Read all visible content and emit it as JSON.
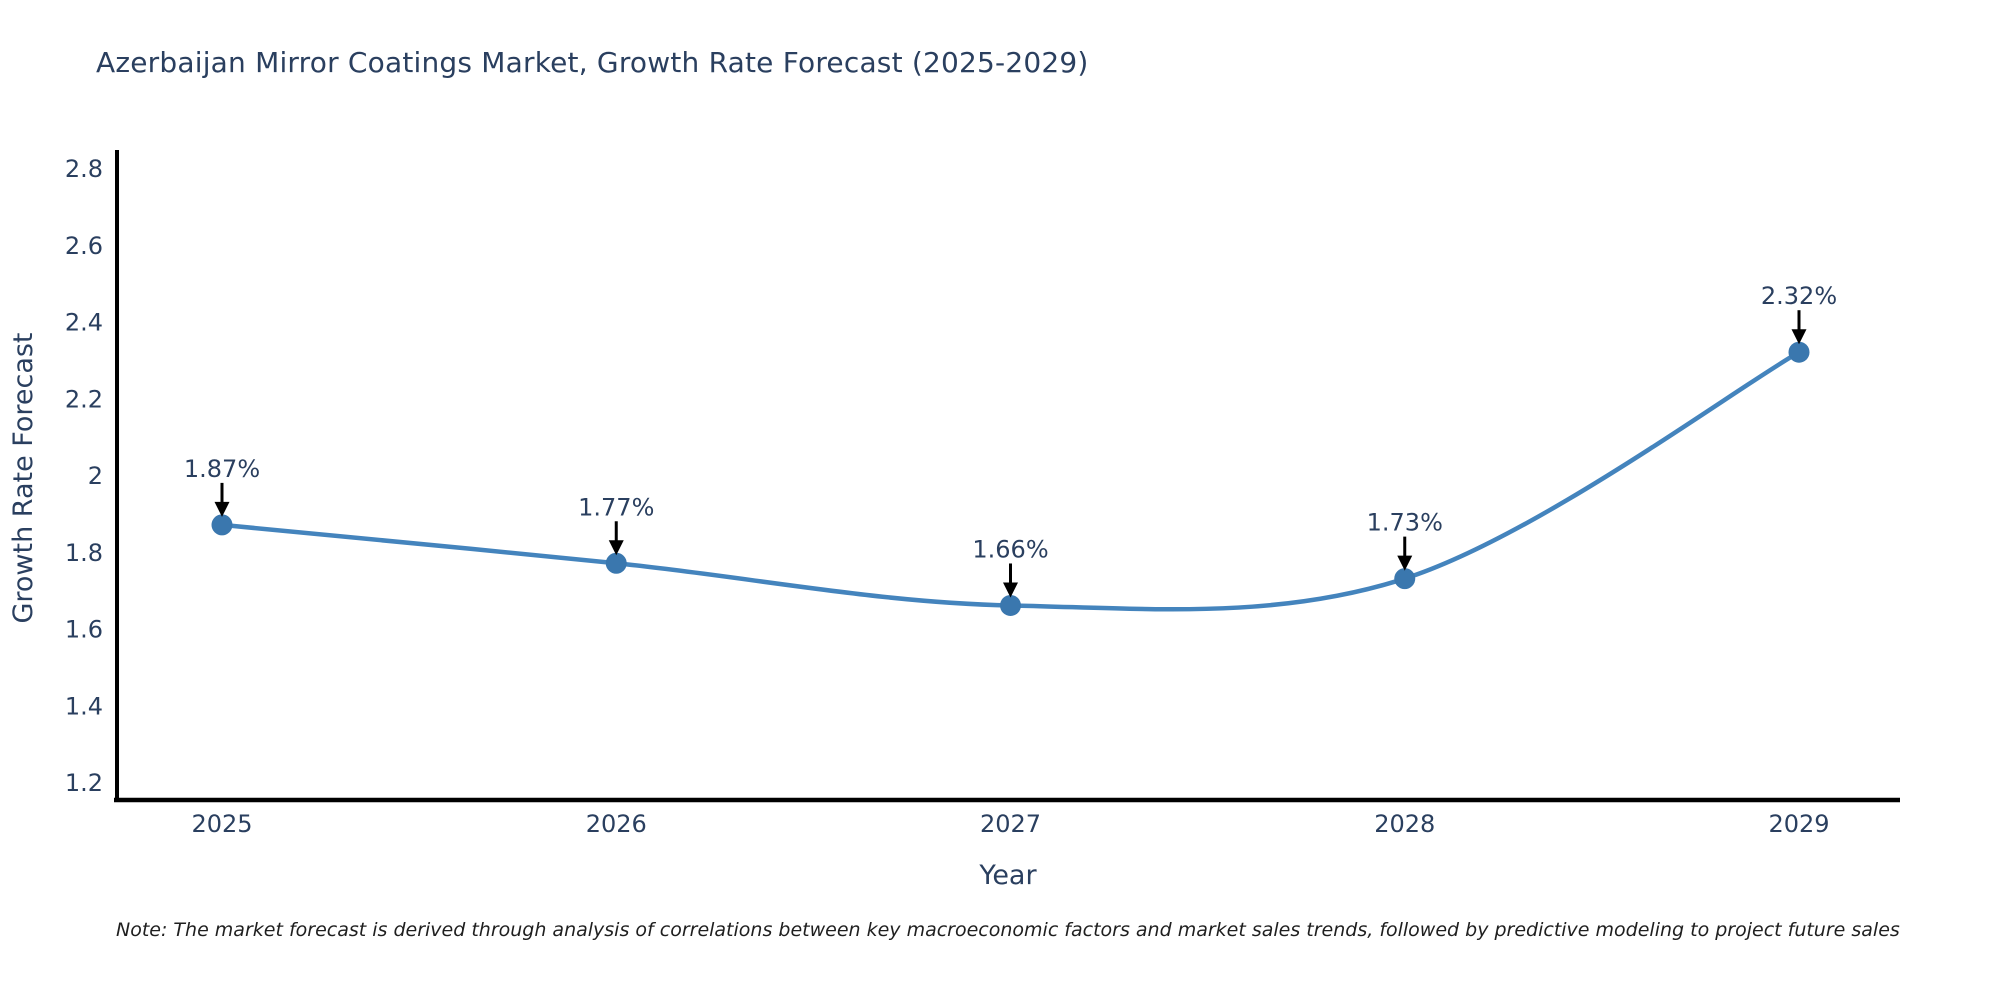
{
  "chart_data": {
    "type": "line",
    "title": "Azerbaijan Mirror Coatings Market, Growth Rate Forecast (2025-2029)",
    "xlabel": "Year",
    "ylabel": "Growth Rate Forecast",
    "categories": [
      "2025",
      "2026",
      "2027",
      "2028",
      "2029"
    ],
    "values": [
      1.87,
      1.77,
      1.66,
      1.73,
      2.32
    ],
    "point_labels": [
      "1.87%",
      "1.77%",
      "1.66%",
      "1.73%",
      "2.32%"
    ],
    "yticks": [
      2.8,
      2.6,
      2.4,
      2.2,
      2,
      1.8,
      1.6,
      1.4,
      1.2
    ],
    "ytick_labels": [
      "2.8",
      "2.6",
      "2.4",
      "2.2",
      "2",
      "1.8",
      "1.6",
      "1.4",
      "1.2"
    ],
    "ylim": [
      1.15,
      2.85
    ],
    "line_shape": "spline",
    "grid": false,
    "legend_position": "none",
    "colors": {
      "line": "#4484bd",
      "marker": "#3a77ae",
      "axis": "#000000",
      "text": "#2a3f5f",
      "annotation_arrow": "#000000",
      "note_text": "#1f1f1f",
      "background": "#ffffff"
    }
  },
  "note": {
    "text": "Note: The market forecast is derived through analysis of correlations between key macroeconomic factors and market sales trends, followed by predictive modeling to project future sales"
  }
}
